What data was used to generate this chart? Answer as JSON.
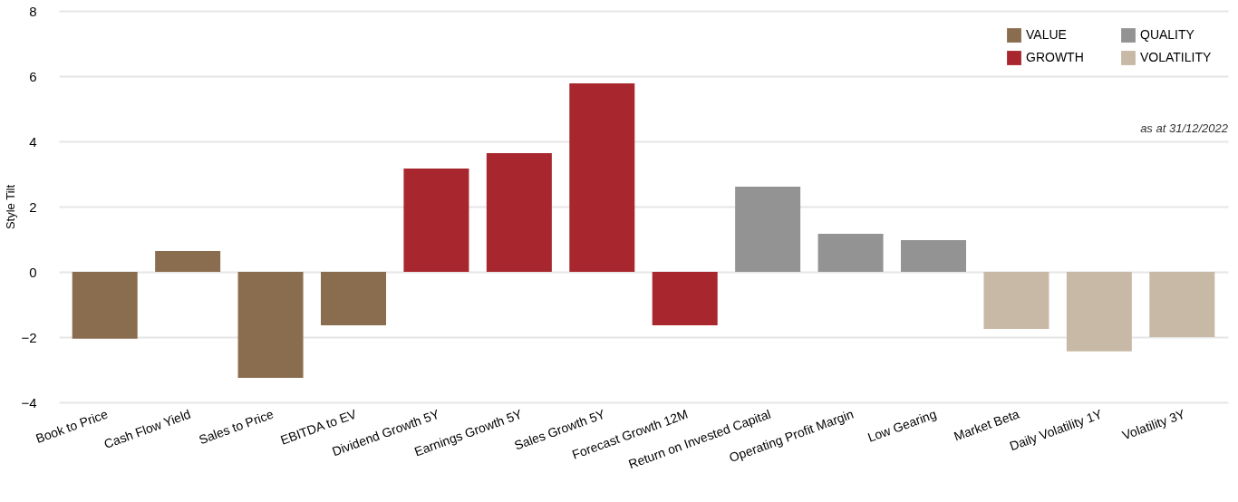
{
  "chart_data": {
    "type": "bar",
    "ylabel": "Style Tilt",
    "categories": [
      "Book to Price",
      "Cash Flow Yield",
      "Sales to Price",
      "EBITDA to EV",
      "Dividend Growth 5Y",
      "Earnings Growth 5Y",
      "Sales Growth 5Y",
      "Forecast Growth 12M",
      "Return on Invested Capital",
      "Operating Profit Margin",
      "Low Gearing",
      "Market Beta",
      "Daily Volatility 1Y",
      "Volatility 3Y"
    ],
    "series": [
      {
        "name": "VALUE",
        "color": "#8a6d4e",
        "values": [
          -2.05,
          0.64,
          -3.25,
          -1.64,
          null,
          null,
          null,
          null,
          null,
          null,
          null,
          null,
          null,
          null
        ]
      },
      {
        "name": "GROWTH",
        "color": "#a8262d",
        "values": [
          null,
          null,
          null,
          null,
          3.17,
          3.64,
          5.78,
          -1.64,
          null,
          null,
          null,
          null,
          null,
          null
        ]
      },
      {
        "name": "QUALITY",
        "color": "#939393",
        "values": [
          null,
          null,
          null,
          null,
          null,
          null,
          null,
          null,
          2.61,
          1.17,
          0.97,
          null,
          null,
          null
        ]
      },
      {
        "name": "VOLATILITY",
        "color": "#c8b9a6",
        "values": [
          null,
          null,
          null,
          null,
          null,
          null,
          null,
          null,
          null,
          null,
          null,
          -1.75,
          -2.44,
          -2.0
        ]
      }
    ],
    "ylim": [
      -4,
      8
    ],
    "yticks": [
      -4,
      -2,
      0,
      2,
      4,
      6,
      8
    ],
    "grid": "y",
    "legend": "top right",
    "annotations": [
      "as at 31/12/2022"
    ]
  }
}
